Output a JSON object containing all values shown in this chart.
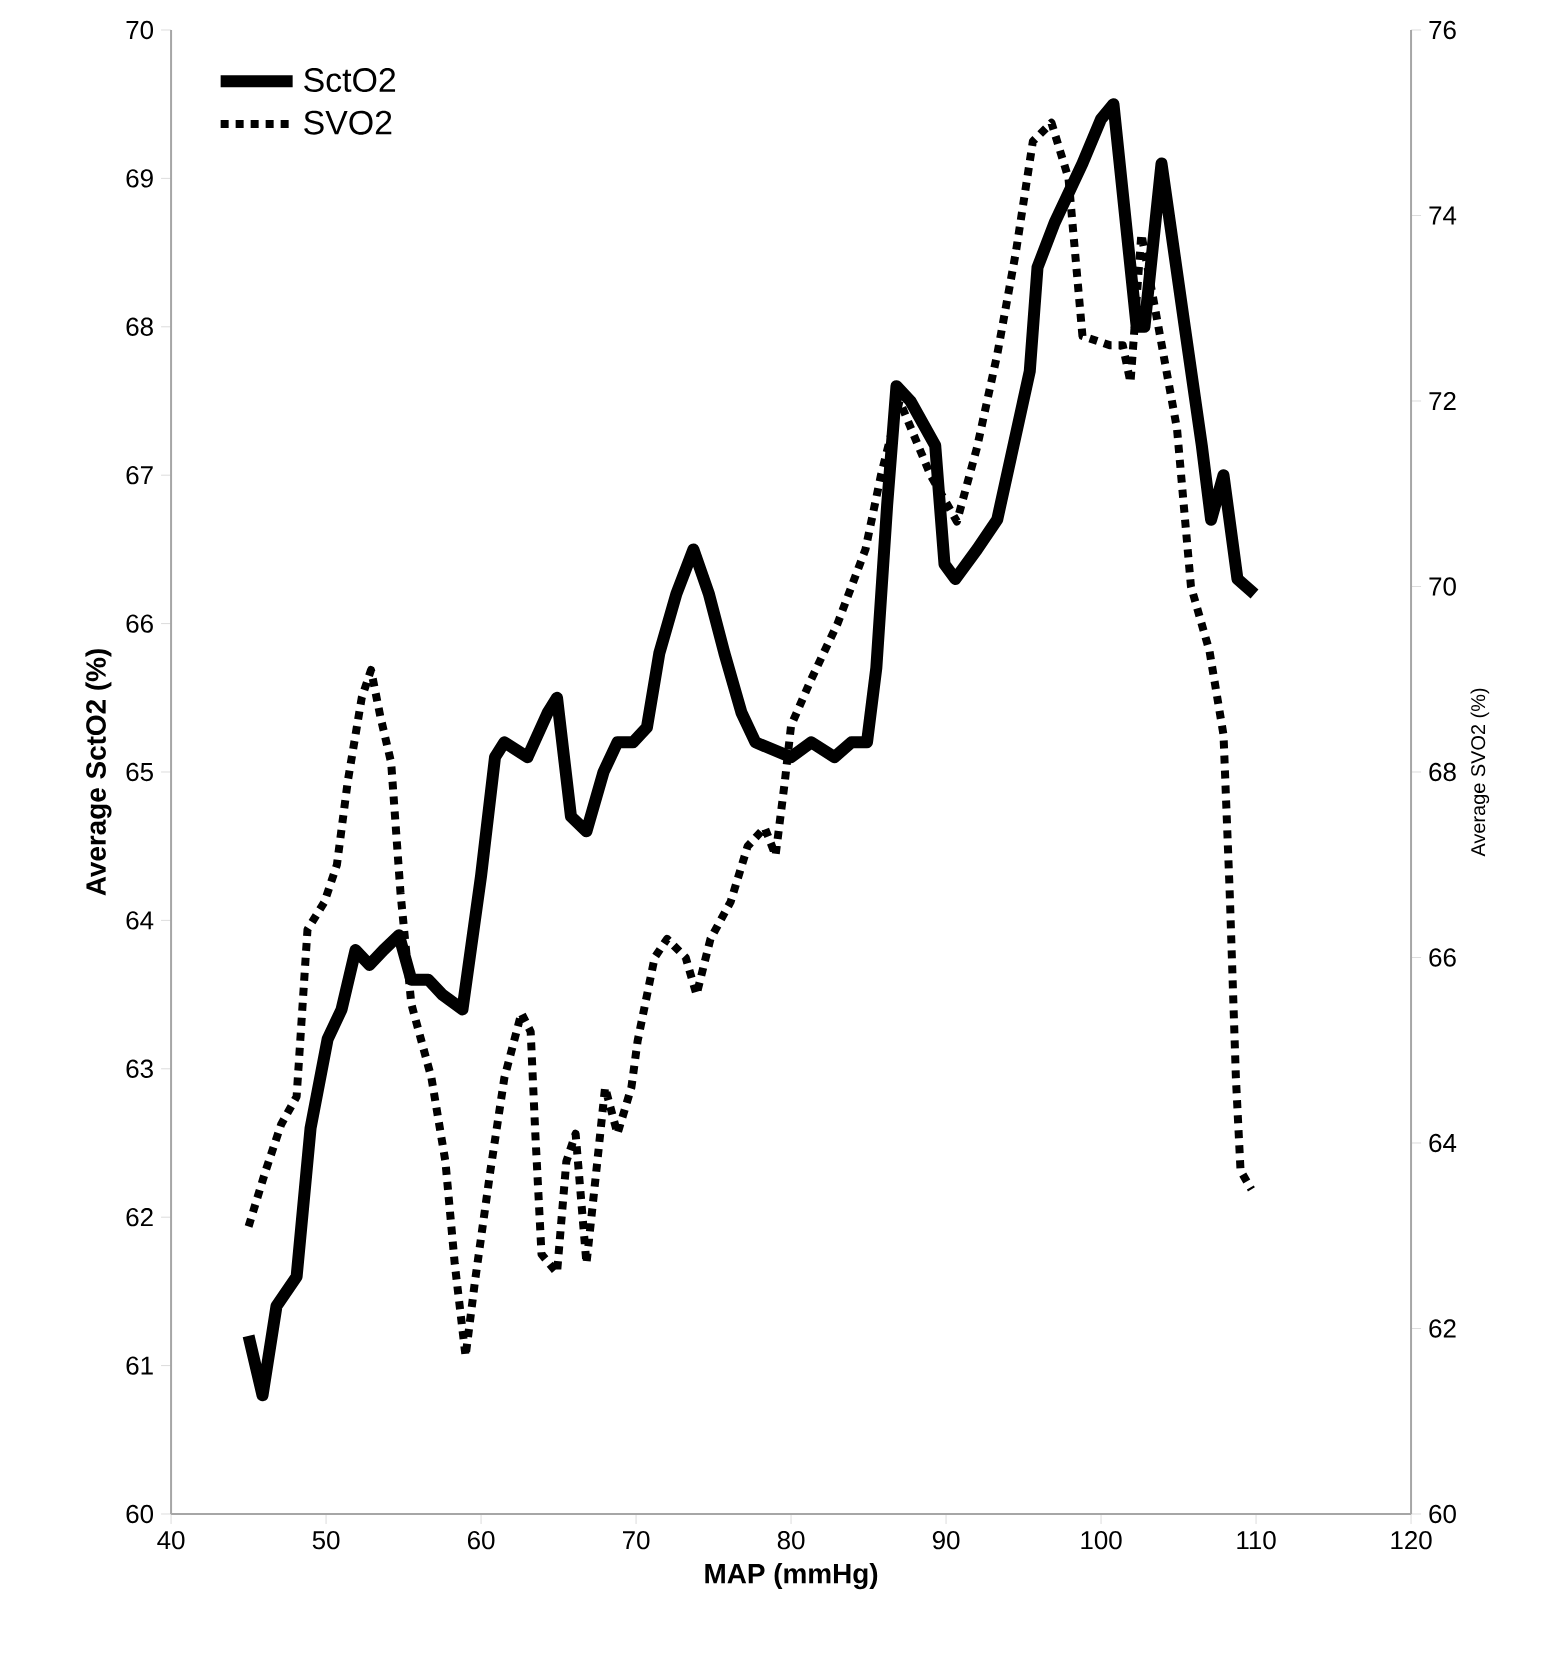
{
  "chart_data": {
    "type": "line",
    "xlabel": "MAP (mmHg)",
    "ylabel": "Average SctO2 (%)",
    "y2label": "Average SVO2 (%)",
    "xlim": [
      40,
      120
    ],
    "xticks": [
      40,
      50,
      60,
      70,
      80,
      90,
      100,
      110,
      120
    ],
    "ylim": [
      60,
      70
    ],
    "yticks": [
      60,
      61,
      62,
      63,
      64,
      65,
      66,
      67,
      68,
      69,
      70
    ],
    "y2lim": [
      60,
      76
    ],
    "y2ticks": [
      60,
      62,
      64,
      66,
      68,
      70,
      72,
      74,
      76
    ],
    "legend": "top left",
    "grid": false,
    "marker": "none",
    "series": [
      {
        "name": "SctO2",
        "color": "#000000",
        "line_style": "solid",
        "x": [
          45.0,
          45.9,
          46.8,
          48.1,
          49.0,
          50.1,
          51.0,
          51.9,
          52.8,
          53.7,
          54.7,
          55.5,
          56.6,
          57.5,
          58.8,
          60.0,
          60.9,
          61.5,
          63.0,
          64.3,
          64.9,
          65.8,
          66.8,
          67.9,
          68.8,
          69.8,
          70.7,
          71.5,
          72.6,
          73.7,
          74.7,
          75.7,
          76.8,
          77.7,
          80.0,
          81.3,
          82.8,
          83.9,
          84.9,
          85.5,
          86.2,
          86.8,
          87.7,
          89.3,
          89.9,
          90.6,
          92.0,
          93.3,
          95.4,
          95.9,
          97.0,
          98.8,
          100.0,
          100.8,
          102.3,
          102.8,
          103.9,
          105.4,
          106.5,
          107.1,
          107.9,
          108.8,
          109.9
        ],
        "values": [
          61.2,
          60.8,
          61.4,
          61.6,
          62.6,
          63.2,
          63.4,
          63.8,
          63.7,
          63.8,
          63.9,
          63.6,
          63.6,
          63.5,
          63.4,
          64.3,
          65.1,
          65.2,
          65.1,
          65.4,
          65.5,
          64.7,
          64.6,
          65.0,
          65.2,
          65.2,
          65.3,
          65.8,
          66.2,
          66.5,
          66.2,
          65.8,
          65.4,
          65.2,
          65.1,
          65.2,
          65.1,
          65.2,
          65.2,
          65.7,
          66.8,
          67.6,
          67.5,
          67.2,
          66.4,
          66.3,
          66.5,
          66.7,
          67.7,
          68.4,
          68.7,
          69.1,
          69.4,
          69.5,
          68.0,
          68.0,
          69.1,
          68.0,
          67.2,
          66.7,
          67.0,
          66.3,
          66.2
        ]
      },
      {
        "name": "SVO2",
        "color": "#000000",
        "line_style": "dotted",
        "axis": "y2",
        "x": [
          45.0,
          46.1,
          47.1,
          48.1,
          48.8,
          49.9,
          50.7,
          51.4,
          52.3,
          52.9,
          53.5,
          54.2,
          54.8,
          55.5,
          56.8,
          57.7,
          58.3,
          59.0,
          59.6,
          60.6,
          61.5,
          62.6,
          63.2,
          63.5,
          63.9,
          64.9,
          65.5,
          66.1,
          66.8,
          67.5,
          68.0,
          68.8,
          69.7,
          70.1,
          71.2,
          72.0,
          73.2,
          73.9,
          74.8,
          76.1,
          77.2,
          78.3,
          79.0,
          79.6,
          80.0,
          81.3,
          83.0,
          84.8,
          85.8,
          87.0,
          89.0,
          90.7,
          92.0,
          93.3,
          94.5,
          95.6,
          96.8,
          97.9,
          98.8,
          100.6,
          101.4,
          101.9,
          102.6,
          103.7,
          104.9,
          105.8,
          107.0,
          107.9,
          108.3,
          108.7,
          109.0,
          109.7
        ],
        "values": [
          63.1,
          63.7,
          64.2,
          64.5,
          66.3,
          66.6,
          67.0,
          67.9,
          68.8,
          69.1,
          68.6,
          68.1,
          66.7,
          65.5,
          64.7,
          63.8,
          62.7,
          61.7,
          62.5,
          63.7,
          64.7,
          65.4,
          65.2,
          64.1,
          62.8,
          62.6,
          63.8,
          64.1,
          62.7,
          63.8,
          64.6,
          64.1,
          64.6,
          65.1,
          66.0,
          66.2,
          66.0,
          65.6,
          66.2,
          66.6,
          67.2,
          67.4,
          67.1,
          67.9,
          68.5,
          69.0,
          69.6,
          70.4,
          71.2,
          72.0,
          71.2,
          70.7,
          71.5,
          72.5,
          73.6,
          74.8,
          75.0,
          74.4,
          72.7,
          72.6,
          72.6,
          72.2,
          73.8,
          72.8,
          71.7,
          70.0,
          69.3,
          68.4,
          66.7,
          64.7,
          63.7,
          63.5
        ]
      }
    ]
  }
}
